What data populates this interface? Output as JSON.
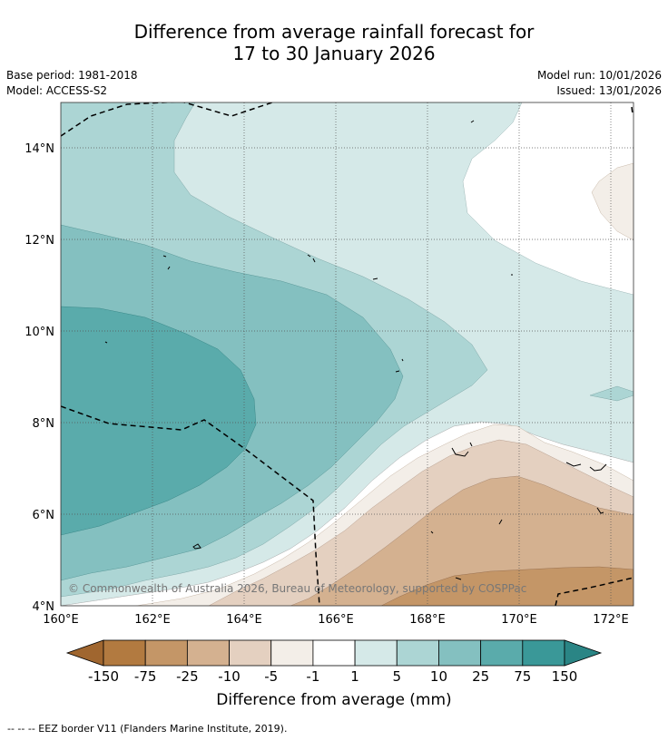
{
  "header": {
    "title_line1": "Difference from average rainfall forecast for",
    "title_line2": "17 to 30 January 2026",
    "base_period": "Base period: 1981-2018",
    "model": "Model: ACCESS-S2",
    "model_run": "Model run: 10/01/2026",
    "issued": "Issued: 13/01/2026"
  },
  "map": {
    "lat_labels": [
      "14°N",
      "12°N",
      "10°N",
      "8°N",
      "6°N",
      "4°N"
    ],
    "lon_labels": [
      "160°E",
      "162°E",
      "164°E",
      "166°E",
      "168°E",
      "170°E",
      "172°E"
    ],
    "copyright": "© Commonwealth of Australia 2026, Bureau of Meteorology, supported by COSPPac"
  },
  "colorbar": {
    "labels": [
      "-150",
      "-75",
      "-25",
      "-10",
      "-5",
      "-1",
      "1",
      "5",
      "10",
      "25",
      "75",
      "150"
    ],
    "colors": [
      "#a0662f",
      "#b27a40",
      "#c49667",
      "#d4b190",
      "#e4d0c0",
      "#f3eee8",
      "#ffffff",
      "#d5e9e8",
      "#acd5d4",
      "#84c0c0",
      "#5aabab",
      "#3a9898",
      "#2a8585"
    ],
    "title": "Difference from average (mm)"
  },
  "legend": {
    "eez": "--  --  -- EEZ border V11 (Flanders Marine Institute, 2019)."
  }
}
